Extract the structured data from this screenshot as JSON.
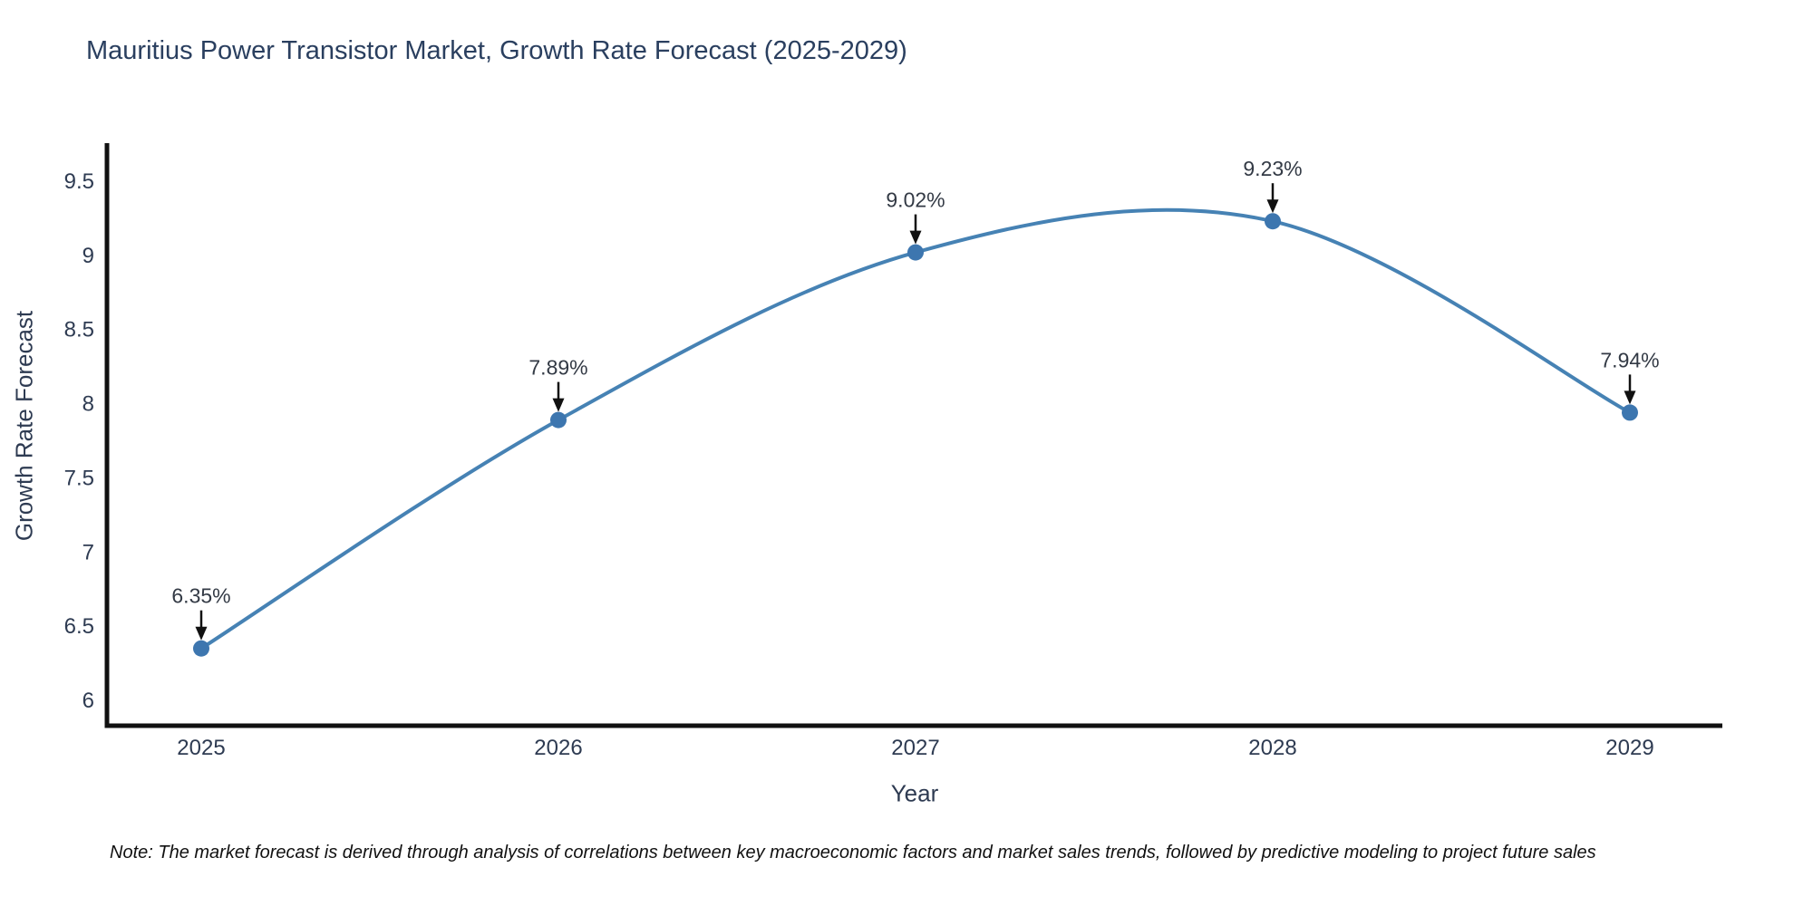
{
  "title": "Mauritius Power Transistor Market, Growth Rate Forecast (2025-2029)",
  "note": "Note: The market forecast is derived through analysis of correlations between key macroeconomic factors and market sales trends, followed by predictive modeling to project future sales",
  "chart_data": {
    "type": "line",
    "line_shape": "spline",
    "title": "Mauritius Power Transistor Market, Growth Rate Forecast (2025-2029)",
    "xlabel": "Year",
    "ylabel": "Growth Rate Forecast",
    "categories": [
      "2025",
      "2026",
      "2027",
      "2028",
      "2029"
    ],
    "series": [
      {
        "name": "Growth Rate Forecast",
        "values": [
          6.35,
          7.89,
          9.02,
          9.23,
          7.94
        ]
      }
    ],
    "point_labels": [
      "6.35%",
      "7.89%",
      "9.02%",
      "9.23%",
      "7.94%"
    ],
    "ytick_labels": [
      "6",
      "6.5",
      "7",
      "7.5",
      "8",
      "8.5",
      "9",
      "9.5"
    ],
    "ytick_values": [
      6,
      6.5,
      7,
      7.5,
      8,
      8.5,
      9,
      9.5
    ],
    "ylim": [
      5.83,
      9.74
    ],
    "grid": false,
    "legend": "none",
    "colors": {
      "line": "#4682b4",
      "marker": "#3d76af",
      "axis": "#111111",
      "arrow": "#111111",
      "tick_text": "#2e3b52",
      "annotation_text": "#333a45",
      "title_text": "#2a3f5f"
    }
  }
}
